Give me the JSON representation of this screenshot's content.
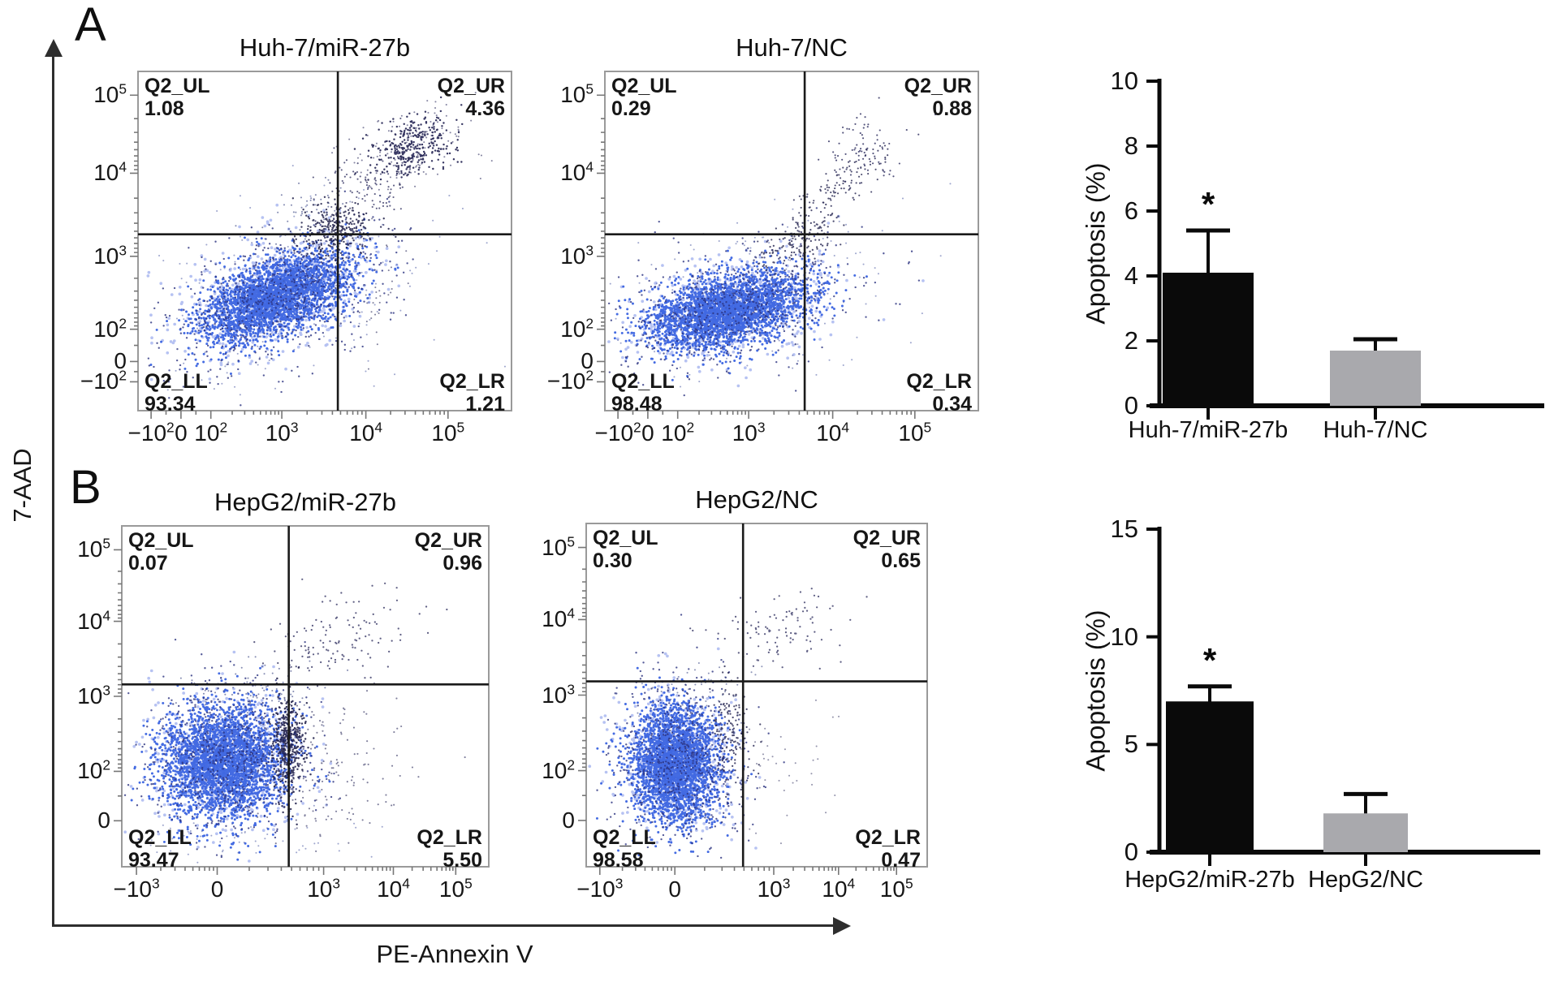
{
  "figure": {
    "panel_a": "A",
    "panel_b": "B",
    "y_axis_label": "7-AAD",
    "x_axis_label": "PE-Annexin V"
  },
  "chart_data": {
    "flow_plots": [
      {
        "type": "scatter",
        "panel": "A",
        "title": "Huh-7/miR-27b",
        "x_axis": "PE-Annexin V",
        "y_axis": "7-AAD",
        "x_ticks": [
          "−10^2",
          "0",
          "10^2",
          "10^3",
          "10^4",
          "10^5"
        ],
        "y_ticks": [
          "10^5",
          "10^4",
          "10^3",
          "10^2",
          "0",
          "−10^2"
        ],
        "quadrants": [
          {
            "name": "Q2_UL",
            "value": "1.08"
          },
          {
            "name": "Q2_UR",
            "value": "4.36"
          },
          {
            "name": "Q2_LL",
            "value": "93.34"
          },
          {
            "name": "Q2_LR",
            "value": "1.21"
          }
        ]
      },
      {
        "type": "scatter",
        "panel": "A",
        "title": "Huh-7/NC",
        "x_axis": "PE-Annexin V",
        "y_axis": "7-AAD",
        "x_ticks": [
          "−10^2",
          "0",
          "10^2",
          "10^3",
          "10^4",
          "10^5"
        ],
        "y_ticks": [
          "10^5",
          "10^4",
          "10^3",
          "10^2",
          "0",
          "−10^2"
        ],
        "quadrants": [
          {
            "name": "Q2_UL",
            "value": "0.29"
          },
          {
            "name": "Q2_UR",
            "value": "0.88"
          },
          {
            "name": "Q2_LL",
            "value": "98.48"
          },
          {
            "name": "Q2_LR",
            "value": "0.34"
          }
        ]
      },
      {
        "type": "scatter",
        "panel": "B",
        "title": "HepG2/miR-27b",
        "x_axis": "PE-Annexin V",
        "y_axis": "7-AAD",
        "x_ticks": [
          "−10^3",
          "0",
          "10^3",
          "10^4",
          "10^5"
        ],
        "y_ticks": [
          "10^5",
          "10^4",
          "10^3",
          "10^2",
          "0"
        ],
        "quadrants": [
          {
            "name": "Q2_UL",
            "value": "0.07"
          },
          {
            "name": "Q2_UR",
            "value": "0.96"
          },
          {
            "name": "Q2_LL",
            "value": "93.47"
          },
          {
            "name": "Q2_LR",
            "value": "5.50"
          }
        ]
      },
      {
        "type": "scatter",
        "panel": "B",
        "title": "HepG2/NC",
        "x_axis": "PE-Annexin V",
        "y_axis": "7-AAD",
        "x_ticks": [
          "−10^3",
          "0",
          "10^3",
          "10^4",
          "10^5"
        ],
        "y_ticks": [
          "10^5",
          "10^4",
          "10^3",
          "10^2",
          "0"
        ],
        "quadrants": [
          {
            "name": "Q2_UL",
            "value": "0.30"
          },
          {
            "name": "Q2_UR",
            "value": "0.65"
          },
          {
            "name": "Q2_LL",
            "value": "98.58"
          },
          {
            "name": "Q2_LR",
            "value": "0.47"
          }
        ]
      }
    ],
    "bar_charts": [
      {
        "type": "bar",
        "panel": "A",
        "ylabel": "Apoptosis (%)",
        "ylim": [
          0,
          10
        ],
        "y_ticks": [
          0,
          2,
          4,
          6,
          8,
          10
        ],
        "categories": [
          "Huh-7/miR-27b",
          "Huh-7/NC"
        ],
        "values": [
          4.1,
          1.7
        ],
        "errors_up": [
          1.3,
          0.35
        ],
        "sig": [
          "*",
          ""
        ],
        "bar_colors": [
          "#0a0a0a",
          "#a9a9ad"
        ]
      },
      {
        "type": "bar",
        "panel": "B",
        "ylabel": "Apoptosis (%)",
        "ylim": [
          0,
          15
        ],
        "y_ticks": [
          0,
          5,
          10,
          15
        ],
        "categories": [
          "HepG2/miR-27b",
          "HepG2/NC"
        ],
        "values": [
          7.0,
          1.8
        ],
        "errors_up": [
          0.7,
          0.9
        ],
        "sig": [
          "*",
          ""
        ],
        "bar_colors": [
          "#0a0a0a",
          "#a9a9ad"
        ]
      }
    ]
  }
}
